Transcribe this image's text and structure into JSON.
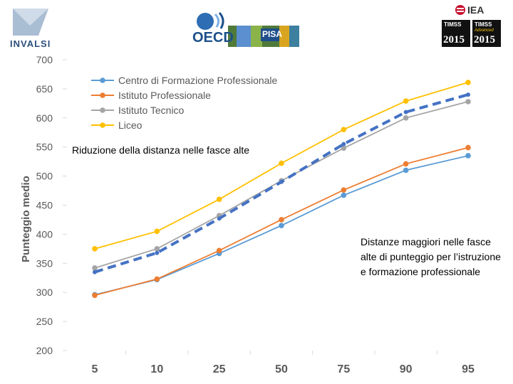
{
  "logos": {
    "invalsi": "INVALSI",
    "oecd": "OECD",
    "pisa": "PISA",
    "iea": "IEA",
    "timss_1": {
      "name": "TIMSS",
      "year": "2015"
    },
    "timss_2": {
      "name": "TIMSS",
      "sub": "Advanced",
      "year": "2015"
    }
  },
  "chart_data": {
    "type": "line",
    "title": "",
    "xlabel": "",
    "ylabel": "Punteggio medio",
    "categories": [
      "5",
      "10",
      "25",
      "50",
      "75",
      "90",
      "95"
    ],
    "ylim": [
      200,
      700
    ],
    "yticks": [
      "200",
      "250",
      "300",
      "350",
      "400",
      "450",
      "500",
      "550",
      "600",
      "650",
      "700"
    ],
    "series": [
      {
        "name": "Centro di Formazione Professionale",
        "color": "#5b9bd5",
        "values": [
          296,
          322,
          367,
          415,
          467,
          510,
          535
        ]
      },
      {
        "name": "Istituto Professionale",
        "color": "#ed7d31",
        "values": [
          295,
          323,
          372,
          425,
          476,
          521,
          549
        ]
      },
      {
        "name": "Istituto Tecnico",
        "color": "#a5a5a5",
        "values": [
          342,
          375,
          432,
          492,
          548,
          600,
          628
        ]
      },
      {
        "name": "Liceo",
        "color": "#ffc000",
        "values": [
          375,
          405,
          460,
          522,
          580,
          629,
          661
        ]
      }
    ],
    "trend": {
      "color": "#4472c4",
      "values": [
        335,
        368,
        427,
        490,
        555,
        610,
        640
      ]
    },
    "legend_position": "top-left",
    "annotations": {
      "top": "Riduzione della distanza nelle fasce alte",
      "right": "Distanze maggiori nelle fasce alte di punteggio per l’istruzione e formazione professionale"
    }
  }
}
